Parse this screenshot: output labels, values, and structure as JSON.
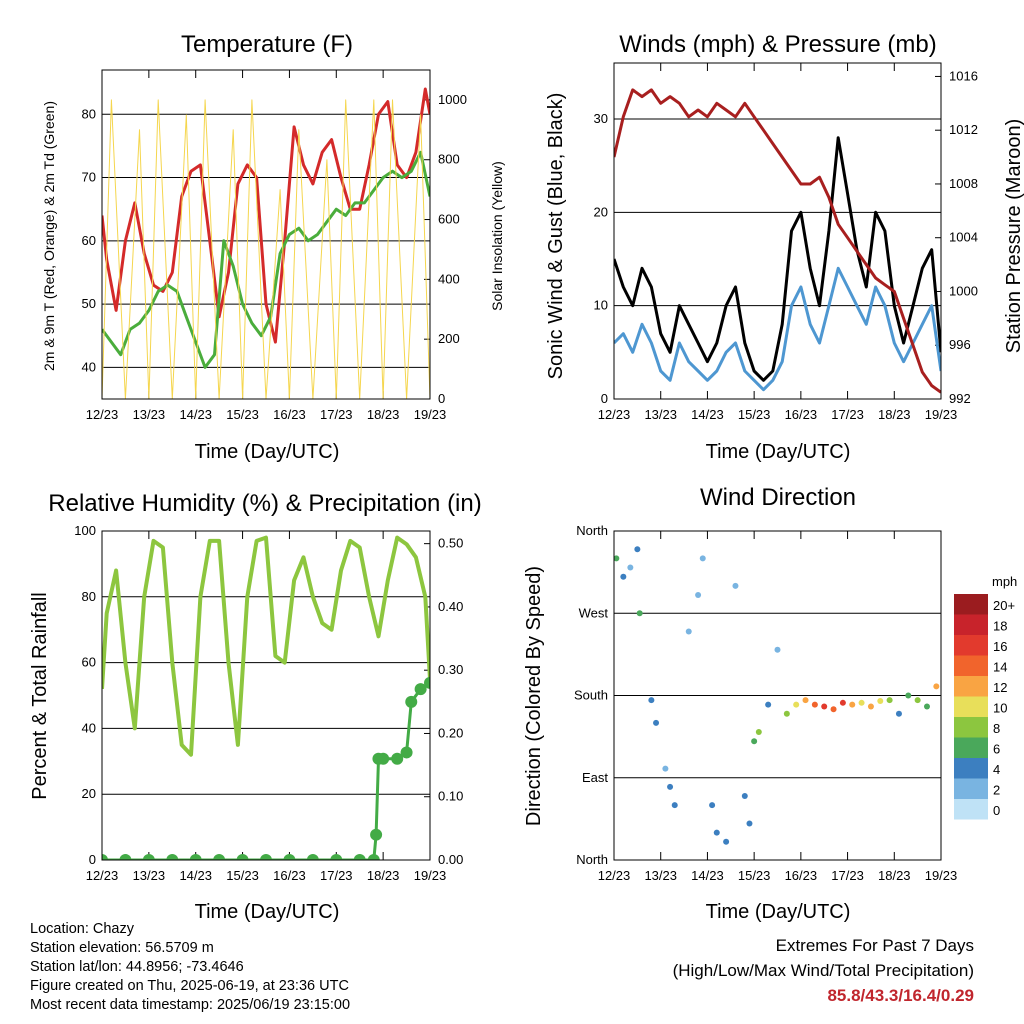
{
  "x_ticks": [
    "12/23",
    "13/23",
    "14/23",
    "15/23",
    "16/23",
    "17/23",
    "18/23",
    "19/23"
  ],
  "temperature": {
    "title": "Temperature (F)",
    "xlabel": "Time (Day/UTC)",
    "ylabel_left": "2m & 9m T (Red, Orange) & 2m Td (Green)",
    "ylabel_right": "Solar Insolation (Yellow)",
    "left_ticks": [
      "40",
      "50",
      "60",
      "70",
      "80"
    ],
    "right_ticks": [
      "0",
      "200",
      "400",
      "600",
      "800",
      "1000"
    ]
  },
  "winds": {
    "title": "Winds (mph) & Pressure (mb)",
    "xlabel": "Time (Day/UTC)",
    "ylabel_left": "Sonic Wind & Gust (Blue, Black)",
    "ylabel_right": "Station Pressure (Maroon)",
    "left_ticks": [
      "0",
      "10",
      "20",
      "30"
    ],
    "right_ticks": [
      "992",
      "996",
      "1000",
      "1004",
      "1008",
      "1012",
      "1016"
    ]
  },
  "humidity": {
    "title": "Relative Humidity (%) & Precipitation (in)",
    "xlabel": "Time (Day/UTC)",
    "ylabel_left": "Percent & Total Rainfall",
    "left_ticks": [
      "0",
      "20",
      "40",
      "60",
      "80",
      "100"
    ],
    "right_ticks": [
      "0.00",
      "0.10",
      "0.20",
      "0.30",
      "0.40",
      "0.50"
    ]
  },
  "direction": {
    "title": "Wind Direction",
    "xlabel": "Time (Day/UTC)",
    "ylabel_left": "Direction (Colored By Speed)",
    "left_ticks": [
      "North",
      "East",
      "South",
      "West",
      "North"
    ],
    "legend_title": "mph",
    "legend_labels": [
      "20+",
      "18",
      "16",
      "14",
      "12",
      "10",
      "8",
      "6",
      "4",
      "2",
      "0"
    ],
    "legend_colors": [
      "#9b1c1f",
      "#c8232b",
      "#e23a2d",
      "#f1642c",
      "#f9a443",
      "#e8df5a",
      "#8cc63f",
      "#4aa85b",
      "#3c7fc0",
      "#79b4e1",
      "#bfe2f6"
    ]
  },
  "info": {
    "location": "Location: Chazy",
    "elevation": "Station elevation: 56.5709 m",
    "latlon": "Station lat/lon: 44.8956; -73.4646",
    "created": "Figure created on Thu, 2025-06-19, at 23:36 UTC",
    "recent": "Most recent data timestamp: 2025/06/19 23:15:00"
  },
  "extremes": {
    "line1": "Extremes For Past 7 Days",
    "line2": "(High/Low/Max Wind/Total Precipitation)",
    "values": "85.8/43.3/16.4/0.29"
  },
  "chart_data": [
    {
      "type": "line",
      "title": "Temperature (F)",
      "xlabel": "Time (Day/UTC)",
      "ylabel": "2m & 9m T (Red, Orange) & 2m Td (Green)",
      "y2label": "Solar Insolation (Yellow)",
      "x_days": [
        12,
        12.5,
        13,
        13.5,
        14,
        14.5,
        15,
        15.5,
        16,
        16.5,
        17,
        17.5,
        18,
        18.5,
        19
      ],
      "ylim": [
        35,
        87
      ],
      "y2lim": [
        0,
        1100
      ],
      "series": [
        {
          "name": "2m T",
          "color": "#d42a2a",
          "days": [
            12,
            12.1,
            12.3,
            12.5,
            12.7,
            12.9,
            13.1,
            13.3,
            13.5,
            13.7,
            13.9,
            14.1,
            14.3,
            14.5,
            14.7,
            14.9,
            15.1,
            15.3,
            15.5,
            15.7,
            15.9,
            16.1,
            16.3,
            16.5,
            16.7,
            16.9,
            17.1,
            17.3,
            17.5,
            17.7,
            17.9,
            18.1,
            18.3,
            18.5,
            18.7,
            18.9,
            19
          ],
          "values": [
            64,
            57,
            49,
            60,
            66,
            58,
            53,
            52,
            55,
            67,
            71,
            72,
            60,
            48,
            55,
            69,
            72,
            70,
            50,
            44,
            60,
            78,
            72,
            69,
            74,
            76,
            70,
            65,
            65,
            72,
            80,
            82,
            72,
            70,
            74,
            84,
            80
          ]
        },
        {
          "name": "2m Td",
          "color": "#4aad3c",
          "days": [
            12,
            12.2,
            12.4,
            12.6,
            12.8,
            13,
            13.2,
            13.4,
            13.6,
            13.8,
            14,
            14.2,
            14.4,
            14.6,
            14.8,
            15,
            15.2,
            15.4,
            15.6,
            15.8,
            16,
            16.2,
            16.4,
            16.6,
            16.8,
            17,
            17.2,
            17.4,
            17.6,
            17.8,
            18,
            18.2,
            18.4,
            18.6,
            18.8,
            19
          ],
          "values": [
            46,
            44,
            42,
            46,
            47,
            49,
            52,
            53,
            52,
            48,
            44,
            40,
            42,
            60,
            56,
            50,
            47,
            45,
            48,
            58,
            61,
            62,
            60,
            61,
            63,
            65,
            64,
            66,
            66,
            68,
            70,
            71,
            70,
            71,
            74,
            67
          ]
        },
        {
          "name": "Solar Insolation",
          "color": "#f5d64e",
          "days": [
            12,
            12.2,
            12.5,
            12.8,
            13,
            13.2,
            13.5,
            13.8,
            14,
            14.2,
            14.5,
            14.8,
            15,
            15.2,
            15.5,
            15.8,
            16,
            16.2,
            16.5,
            16.8,
            17,
            17.2,
            17.5,
            17.8,
            18,
            18.2,
            18.5,
            18.8,
            19
          ],
          "values": [
            0,
            1000,
            0,
            900,
            0,
            1000,
            0,
            950,
            0,
            1000,
            0,
            900,
            0,
            1000,
            0,
            700,
            0,
            900,
            0,
            800,
            0,
            1000,
            0,
            1000,
            0,
            1000,
            0,
            950,
            0
          ]
        }
      ]
    },
    {
      "type": "line",
      "title": "Winds (mph) & Pressure (mb)",
      "xlabel": "Time (Day/UTC)",
      "ylabel": "Sonic Wind & Gust (Blue, Black)",
      "y2label": "Station Pressure (Maroon)",
      "ylim": [
        0,
        36
      ],
      "y2lim": [
        992,
        1017
      ],
      "series": [
        {
          "name": "Sonic Wind",
          "color": "#4e97d1",
          "days": [
            12,
            12.2,
            12.4,
            12.6,
            12.8,
            13,
            13.2,
            13.4,
            13.6,
            13.8,
            14,
            14.2,
            14.4,
            14.6,
            14.8,
            15,
            15.2,
            15.4,
            15.6,
            15.8,
            16,
            16.2,
            16.4,
            16.6,
            16.8,
            17,
            17.2,
            17.4,
            17.6,
            17.8,
            18,
            18.2,
            18.4,
            18.6,
            18.8,
            19
          ],
          "values": [
            6,
            7,
            5,
            8,
            6,
            3,
            2,
            6,
            4,
            3,
            2,
            3,
            5,
            6,
            3,
            2,
            1,
            2,
            4,
            10,
            12,
            8,
            6,
            10,
            14,
            12,
            10,
            8,
            12,
            10,
            6,
            4,
            6,
            8,
            10,
            3
          ]
        },
        {
          "name": "Gust",
          "color": "#000000",
          "days": [
            12,
            12.2,
            12.4,
            12.6,
            12.8,
            13,
            13.2,
            13.4,
            13.6,
            13.8,
            14,
            14.2,
            14.4,
            14.6,
            14.8,
            15,
            15.2,
            15.4,
            15.6,
            15.8,
            16,
            16.2,
            16.4,
            16.6,
            16.8,
            17,
            17.2,
            17.4,
            17.6,
            17.8,
            18,
            18.2,
            18.4,
            18.6,
            18.8,
            19
          ],
          "values": [
            15,
            12,
            10,
            14,
            12,
            7,
            5,
            10,
            8,
            6,
            4,
            6,
            10,
            12,
            6,
            3,
            2,
            3,
            8,
            18,
            20,
            14,
            10,
            18,
            28,
            22,
            16,
            12,
            20,
            18,
            10,
            6,
            10,
            14,
            16,
            5
          ]
        },
        {
          "name": "Station Pressure",
          "color": "#a81f1f",
          "days": [
            12,
            12.2,
            12.4,
            12.6,
            12.8,
            13,
            13.2,
            13.4,
            13.6,
            13.8,
            14,
            14.2,
            14.4,
            14.6,
            14.8,
            15,
            15.2,
            15.4,
            15.6,
            15.8,
            16,
            16.2,
            16.4,
            16.6,
            16.8,
            17,
            17.2,
            17.4,
            17.6,
            17.8,
            18,
            18.2,
            18.4,
            18.6,
            18.8,
            19
          ],
          "values": [
            1010,
            1013,
            1015,
            1014.5,
            1015,
            1014,
            1014.5,
            1014,
            1013,
            1013.5,
            1013,
            1014,
            1013.5,
            1013,
            1014,
            1013,
            1012,
            1011,
            1010,
            1009,
            1008,
            1008,
            1008.5,
            1007,
            1005,
            1004,
            1003,
            1002,
            1001,
            1000.5,
            1000,
            998,
            996,
            994,
            993,
            992.5
          ]
        }
      ]
    },
    {
      "type": "line",
      "title": "Relative Humidity (%) & Precipitation (in)",
      "xlabel": "Time (Day/UTC)",
      "ylabel": "Percent & Total Rainfall",
      "ylim": [
        0,
        100
      ],
      "y2lim": [
        0,
        0.52
      ],
      "series": [
        {
          "name": "Relative Humidity",
          "color": "#8dc63f",
          "days": [
            12,
            12.1,
            12.3,
            12.5,
            12.7,
            12.9,
            13.1,
            13.3,
            13.5,
            13.7,
            13.9,
            14.1,
            14.3,
            14.5,
            14.7,
            14.9,
            15.1,
            15.3,
            15.5,
            15.7,
            15.9,
            16.1,
            16.3,
            16.5,
            16.7,
            16.9,
            17.1,
            17.3,
            17.5,
            17.7,
            17.9,
            18.1,
            18.3,
            18.5,
            18.7,
            18.9,
            19
          ],
          "values": [
            52,
            75,
            88,
            60,
            40,
            80,
            97,
            95,
            60,
            35,
            32,
            80,
            97,
            97,
            60,
            35,
            80,
            97,
            98,
            62,
            60,
            85,
            92,
            80,
            72,
            70,
            88,
            97,
            95,
            80,
            68,
            85,
            98,
            96,
            92,
            80,
            55
          ]
        },
        {
          "name": "Total Precipitation",
          "color": "#43ab46",
          "days": [
            12,
            12.5,
            13,
            13.5,
            14,
            14.5,
            15,
            15.5,
            16,
            16.5,
            17,
            17.5,
            17.8,
            17.85,
            17.9,
            18,
            18.3,
            18.5,
            18.6,
            18.8,
            19
          ],
          "values": [
            0,
            0,
            0,
            0,
            0,
            0,
            0,
            0,
            0,
            0,
            0,
            0,
            0,
            0.04,
            0.16,
            0.16,
            0.16,
            0.17,
            0.25,
            0.27,
            0.28
          ]
        }
      ]
    },
    {
      "type": "scatter",
      "title": "Wind Direction",
      "xlabel": "Time (Day/UTC)",
      "ylabel": "Direction (Colored By Speed)",
      "ylim": [
        0,
        360
      ],
      "series": [
        {
          "name": "Wind Direction",
          "days": [
            12.05,
            12.2,
            12.35,
            12.5,
            12.55,
            12.8,
            12.9,
            13.1,
            13.2,
            13.3,
            13.6,
            13.8,
            13.9,
            14.1,
            14.2,
            14.4,
            14.6,
            14.8,
            14.9,
            15.0,
            15.1,
            15.3,
            15.5,
            15.7,
            15.9,
            16.1,
            16.3,
            16.5,
            16.7,
            16.9,
            17.1,
            17.3,
            17.5,
            17.7,
            17.9,
            18.1,
            18.3,
            18.5,
            18.7,
            18.9
          ],
          "values": [
            330,
            310,
            320,
            340,
            270,
            175,
            150,
            100,
            80,
            60,
            250,
            290,
            330,
            60,
            30,
            20,
            300,
            70,
            40,
            130,
            140,
            170,
            230,
            160,
            170,
            175,
            170,
            168,
            165,
            172,
            170,
            172,
            168,
            174,
            175,
            160,
            180,
            175,
            168,
            190
          ],
          "speeds": [
            6,
            4,
            2,
            4,
            6,
            4,
            4,
            2,
            4,
            4,
            2,
            2,
            2,
            4,
            4,
            4,
            2,
            4,
            4,
            6,
            8,
            4,
            2,
            8,
            10,
            12,
            14,
            16,
            14,
            16,
            12,
            10,
            12,
            10,
            8,
            4,
            6,
            8,
            6,
            12
          ]
        }
      ]
    }
  ]
}
